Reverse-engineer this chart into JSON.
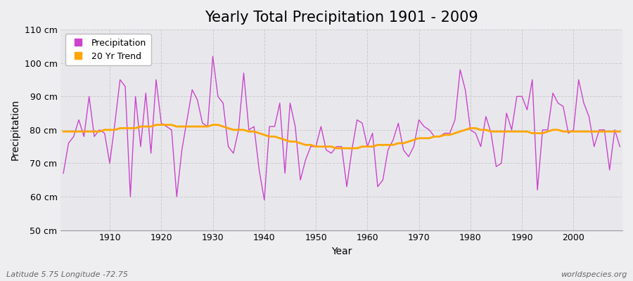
{
  "title": "Yearly Total Precipitation 1901 - 2009",
  "xlabel": "Year",
  "ylabel": "Precipitation",
  "subtitle": "Latitude 5.75 Longitude -72.75",
  "watermark": "worldspecies.org",
  "ylim": [
    50,
    110
  ],
  "yticks": [
    50,
    60,
    70,
    80,
    90,
    100,
    110
  ],
  "ytick_labels": [
    "50 cm",
    "60 cm",
    "70 cm",
    "80 cm",
    "90 cm",
    "100 cm",
    "110 cm"
  ],
  "years": [
    1901,
    1902,
    1903,
    1904,
    1905,
    1906,
    1907,
    1908,
    1909,
    1910,
    1911,
    1912,
    1913,
    1914,
    1915,
    1916,
    1917,
    1918,
    1919,
    1920,
    1921,
    1922,
    1923,
    1924,
    1925,
    1926,
    1927,
    1928,
    1929,
    1930,
    1931,
    1932,
    1933,
    1934,
    1935,
    1936,
    1937,
    1938,
    1939,
    1940,
    1941,
    1942,
    1943,
    1944,
    1945,
    1946,
    1947,
    1948,
    1949,
    1950,
    1951,
    1952,
    1953,
    1954,
    1955,
    1956,
    1957,
    1958,
    1959,
    1960,
    1961,
    1962,
    1963,
    1964,
    1965,
    1966,
    1967,
    1968,
    1969,
    1970,
    1971,
    1972,
    1973,
    1974,
    1975,
    1976,
    1977,
    1978,
    1979,
    1980,
    1981,
    1982,
    1983,
    1984,
    1985,
    1986,
    1987,
    1988,
    1989,
    1990,
    1991,
    1992,
    1993,
    1994,
    1995,
    1996,
    1997,
    1998,
    1999,
    2000,
    2001,
    2002,
    2003,
    2004,
    2005,
    2006,
    2007,
    2008,
    2009
  ],
  "precipitation": [
    67,
    76,
    78,
    83,
    78,
    90,
    78,
    80,
    79,
    70,
    82,
    95,
    93,
    60,
    90,
    75,
    91,
    73,
    95,
    82,
    81,
    80,
    60,
    74,
    83,
    92,
    89,
    82,
    81,
    102,
    90,
    88,
    75,
    73,
    80,
    97,
    80,
    81,
    68,
    59,
    81,
    81,
    88,
    67,
    88,
    81,
    65,
    71,
    75,
    75,
    81,
    74,
    73,
    75,
    75,
    63,
    74,
    83,
    82,
    75,
    79,
    63,
    65,
    74,
    77,
    82,
    74,
    72,
    75,
    83,
    81,
    80,
    78,
    78,
    79,
    79,
    83,
    98,
    92,
    80,
    79,
    75,
    84,
    79,
    69,
    70,
    85,
    80,
    90,
    90,
    86,
    95,
    62,
    80,
    80,
    91,
    88,
    87,
    79,
    80,
    95,
    88,
    84,
    75,
    80,
    80,
    68,
    80,
    75
  ],
  "trend": [
    79.5,
    79.5,
    79.5,
    79.5,
    79.5,
    79.5,
    79.5,
    79.5,
    80.0,
    80.0,
    80.0,
    80.5,
    80.5,
    80.5,
    80.5,
    81.0,
    81.0,
    81.0,
    81.5,
    81.5,
    81.5,
    81.5,
    81.0,
    81.0,
    81.0,
    81.0,
    81.0,
    81.0,
    81.0,
    81.5,
    81.5,
    81.0,
    80.5,
    80.0,
    80.0,
    80.0,
    79.5,
    79.5,
    79.0,
    78.5,
    78.0,
    78.0,
    77.5,
    77.0,
    76.5,
    76.5,
    76.0,
    75.5,
    75.5,
    75.0,
    75.0,
    75.0,
    75.0,
    74.5,
    74.5,
    74.5,
    74.5,
    74.5,
    75.0,
    75.0,
    75.0,
    75.5,
    75.5,
    75.5,
    75.5,
    76.0,
    76.0,
    76.5,
    77.0,
    77.5,
    77.5,
    77.5,
    78.0,
    78.0,
    78.5,
    78.5,
    79.0,
    79.5,
    80.0,
    80.5,
    80.5,
    80.0,
    80.0,
    79.5,
    79.5,
    79.5,
    79.5,
    79.5,
    79.5,
    79.5,
    79.5,
    79.0,
    79.0,
    79.0,
    79.5,
    80.0,
    80.0,
    79.5,
    79.5,
    79.5,
    79.5,
    79.5,
    79.5,
    79.5,
    79.5,
    79.5,
    79.5,
    79.5,
    79.5
  ],
  "precip_color": "#CC44CC",
  "trend_color": "#FFA500",
  "bg_color": "#EEEEF0",
  "plot_bg_color": "#E8E8EC",
  "grid_color": "#CCCCCC",
  "title_fontsize": 15,
  "label_fontsize": 10,
  "tick_fontsize": 9,
  "legend_fontsize": 9,
  "subtitle_fontsize": 8,
  "watermark_fontsize": 8,
  "xticks": [
    1910,
    1920,
    1930,
    1940,
    1950,
    1960,
    1970,
    1980,
    1990,
    2000
  ]
}
